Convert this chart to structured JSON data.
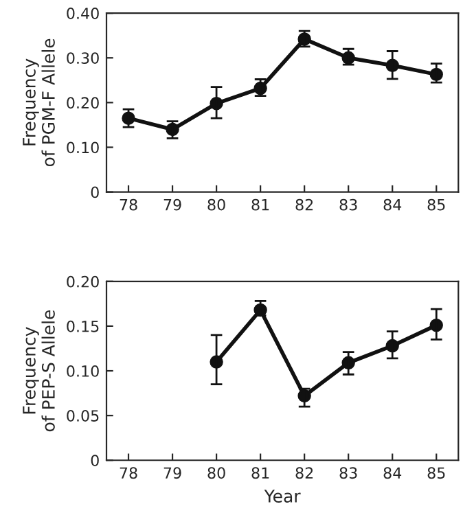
{
  "chart_data": [
    {
      "type": "line",
      "ylabel": "Frequency\nof PGM-F Allele",
      "categories": [
        "78",
        "79",
        "80",
        "81",
        "82",
        "83",
        "84",
        "85"
      ],
      "values": [
        0.165,
        0.14,
        0.198,
        0.232,
        0.342,
        0.3,
        0.283,
        0.263
      ],
      "errors": [
        [
          0.145,
          0.185
        ],
        [
          0.12,
          0.158
        ],
        [
          0.165,
          0.235
        ],
        [
          0.215,
          0.252
        ],
        [
          0.325,
          0.36
        ],
        [
          0.285,
          0.32
        ],
        [
          0.253,
          0.315
        ],
        [
          0.245,
          0.287
        ]
      ],
      "color": "#111111",
      "marker": "circle",
      "line_style": "solid",
      "grid": false,
      "ylim": [
        0,
        0.4
      ],
      "yticks": [
        0,
        {
          "value": 0.1,
          "label": "0.10"
        },
        {
          "value": 0.2,
          "label": "0.20"
        },
        {
          "value": 0.3,
          "label": "0.30"
        },
        {
          "value": 0.4,
          "label": "0.40"
        }
      ]
    },
    {
      "type": "line",
      "ylabel": "Frequency\nof PEP-S Allele",
      "xlabel": "Year",
      "categories": [
        "78",
        "79",
        "80",
        "81",
        "82",
        "83",
        "84",
        "85"
      ],
      "values": [
        null,
        null,
        0.11,
        0.168,
        0.072,
        0.109,
        0.128,
        0.151
      ],
      "errors": [
        null,
        null,
        [
          0.085,
          0.14
        ],
        [
          0.162,
          0.178
        ],
        [
          0.06,
          0.08
        ],
        [
          0.096,
          0.121
        ],
        [
          0.114,
          0.144
        ],
        [
          0.135,
          0.169
        ]
      ],
      "color": "#111111",
      "marker": "circle",
      "line_style": "solid",
      "grid": false,
      "ylim": [
        0,
        0.2
      ],
      "yticks": [
        0,
        {
          "value": 0.05,
          "label": "0.05"
        },
        {
          "value": 0.1,
          "label": "0.10"
        },
        {
          "value": 0.15,
          "label": "0.15"
        },
        {
          "value": 0.2,
          "label": "0.20"
        }
      ]
    }
  ]
}
